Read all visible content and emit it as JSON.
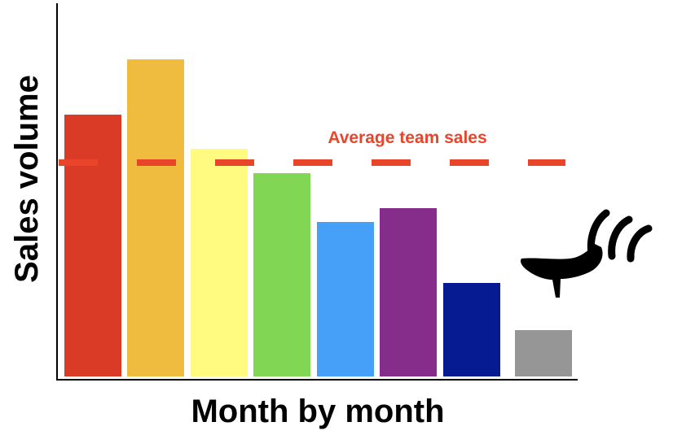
{
  "chart_data": {
    "type": "bar",
    "title": "",
    "xlabel": "Month by month",
    "ylabel": "Sales volume",
    "ylim": [
      0,
      460
    ],
    "grid": false,
    "legend": "none",
    "categories": [
      "",
      "",
      "",
      "",
      "",
      "",
      "",
      ""
    ],
    "values": [
      322,
      390,
      280,
      250,
      190,
      207,
      115,
      57
    ],
    "colors": [
      "#da3b26",
      "#efbc40",
      "#fefb80",
      "#81d653",
      "#46a0f7",
      "#862d8c",
      "#061a91",
      "#969696"
    ],
    "reference_line": {
      "label": "Average team sales",
      "value": 263,
      "color": "#e8452b",
      "style": "dashed"
    },
    "annotation": {
      "icon": "high-heel-kick-icon",
      "target_bar_index": 7
    }
  }
}
